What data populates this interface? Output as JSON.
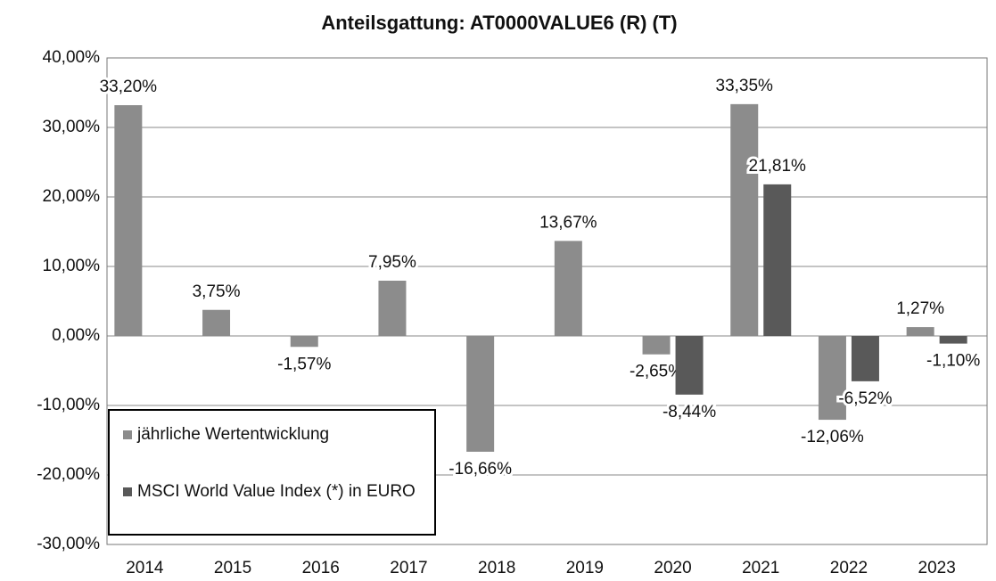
{
  "chart_data": {
    "type": "bar",
    "title": "Anteilsgattung: AT0000VALUE6 (R) (T)",
    "categories": [
      "2014",
      "2015",
      "2016",
      "2017",
      "2018",
      "2019",
      "2020",
      "2021",
      "2022",
      "2023"
    ],
    "series": [
      {
        "name": "jährliche Wertentwicklung",
        "color": "#8c8c8c",
        "values": [
          33.2,
          3.75,
          -1.57,
          7.95,
          -16.66,
          13.67,
          -2.65,
          33.35,
          -12.06,
          1.27
        ],
        "value_labels": [
          "33,20%",
          "3,75%",
          "-1,57%",
          "7,95%",
          "-16,66%",
          "13,67%",
          "-2,65%",
          "33,35%",
          "-12,06%",
          "1,27%"
        ]
      },
      {
        "name": "MSCI World Value Index (*) in EURO",
        "color": "#595959",
        "values": [
          null,
          null,
          null,
          null,
          null,
          null,
          -8.44,
          21.81,
          -6.52,
          -1.1
        ],
        "value_labels": [
          null,
          null,
          null,
          null,
          null,
          null,
          "-8,44%",
          "21,81%",
          "-6,52%",
          "-1,10%"
        ]
      }
    ],
    "ylim": [
      -30,
      40
    ],
    "yticks": [
      {
        "value": -30,
        "label": "-30,00%"
      },
      {
        "value": -20,
        "label": "-20,00%"
      },
      {
        "value": -10,
        "label": "-10,00%"
      },
      {
        "value": 0,
        "label": "0,00%"
      },
      {
        "value": 10,
        "label": "10,00%"
      },
      {
        "value": 20,
        "label": "20,00%"
      },
      {
        "value": 30,
        "label": "30,00%"
      },
      {
        "value": 40,
        "label": "40,00%"
      }
    ],
    "grid": true,
    "legend": "lower left"
  }
}
